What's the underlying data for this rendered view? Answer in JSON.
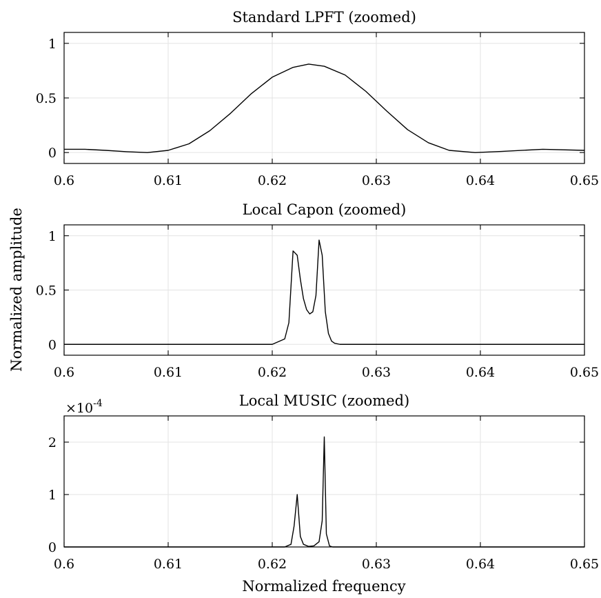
{
  "figure": {
    "ylabel": "Normalized amplitude",
    "xlabel": "Normalized frequency"
  },
  "chart_data": [
    {
      "type": "line",
      "title": "Standard LPFT (zoomed)",
      "xlim": [
        0.6,
        0.65
      ],
      "ylim": [
        -0.1,
        1.1
      ],
      "xticks": [
        0.6,
        0.61,
        0.62,
        0.63,
        0.64,
        0.65
      ],
      "xtick_labels": [
        "0.6",
        "0.61",
        "0.62",
        "0.63",
        "0.64",
        "0.65"
      ],
      "yticks": [
        0,
        0.5,
        1
      ],
      "ytick_labels": [
        "0",
        "0.5",
        "1"
      ],
      "grid": true,
      "series": [
        {
          "x": [
            0.6,
            0.602,
            0.604,
            0.606,
            0.608,
            0.61,
            0.612,
            0.614,
            0.616,
            0.618,
            0.62,
            0.622,
            0.6235,
            0.625,
            0.627,
            0.629,
            0.631,
            0.633,
            0.635,
            0.637,
            0.6395,
            0.642,
            0.646,
            0.65
          ],
          "y": [
            0.03,
            0.03,
            0.02,
            0.008,
            0.0,
            0.02,
            0.08,
            0.2,
            0.36,
            0.54,
            0.69,
            0.78,
            0.81,
            0.79,
            0.71,
            0.56,
            0.38,
            0.21,
            0.09,
            0.02,
            0.0,
            0.01,
            0.03,
            0.02
          ]
        }
      ]
    },
    {
      "type": "line",
      "title": "Local Capon (zoomed)",
      "xlim": [
        0.6,
        0.65
      ],
      "ylim": [
        -0.1,
        1.1
      ],
      "xticks": [
        0.6,
        0.61,
        0.62,
        0.63,
        0.64,
        0.65
      ],
      "xtick_labels": [
        "0.6",
        "0.61",
        "0.62",
        "0.63",
        "0.64",
        "0.65"
      ],
      "yticks": [
        0,
        0.5,
        1
      ],
      "ytick_labels": [
        "0",
        "0.5",
        "1"
      ],
      "grid": true,
      "series": [
        {
          "x": [
            0.6,
            0.62,
            0.6212,
            0.6216,
            0.622,
            0.6224,
            0.6227,
            0.623,
            0.6233,
            0.6236,
            0.6239,
            0.6242,
            0.6245,
            0.6248,
            0.6251,
            0.6254,
            0.6257,
            0.626,
            0.6265,
            0.627,
            0.65
          ],
          "y": [
            0,
            0,
            0.05,
            0.2,
            0.86,
            0.82,
            0.6,
            0.42,
            0.32,
            0.28,
            0.3,
            0.45,
            0.96,
            0.82,
            0.3,
            0.1,
            0.03,
            0.01,
            0.0,
            0,
            0
          ]
        }
      ]
    },
    {
      "type": "line",
      "title": "Local MUSIC (zoomed)",
      "y_multiplier": "×10",
      "y_multiplier_exp": "-4",
      "xlim": [
        0.6,
        0.65
      ],
      "ylim": [
        0,
        2.5
      ],
      "xticks": [
        0.6,
        0.61,
        0.62,
        0.63,
        0.64,
        0.65
      ],
      "xtick_labels": [
        "0.6",
        "0.61",
        "0.62",
        "0.63",
        "0.64",
        "0.65"
      ],
      "yticks": [
        0,
        1,
        2
      ],
      "ytick_labels": [
        "0",
        "1",
        "2"
      ],
      "grid": true,
      "series": [
        {
          "x": [
            0.6,
            0.6212,
            0.6218,
            0.6221,
            0.6224,
            0.6227,
            0.623,
            0.6235,
            0.624,
            0.6245,
            0.6248,
            0.625,
            0.6252,
            0.6255,
            0.6258,
            0.65
          ],
          "y": [
            0,
            0,
            0.05,
            0.4,
            1.0,
            0.2,
            0.05,
            0.01,
            0.02,
            0.1,
            0.5,
            2.1,
            0.25,
            0.02,
            0,
            0
          ]
        }
      ]
    }
  ]
}
